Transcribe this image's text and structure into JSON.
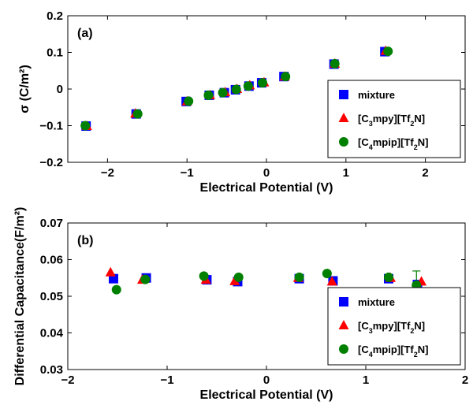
{
  "chart_data": [
    {
      "type": "scatter",
      "panel_label": "(a)",
      "xlabel": "Electrical Potential (V)",
      "ylabel": "σ (C/m²)",
      "xlim": [
        -2.5,
        2.5
      ],
      "ylim": [
        -0.2,
        0.2
      ],
      "xticks": [
        "−2",
        "−1",
        "0",
        "1",
        "2"
      ],
      "xtick_values": [
        -2,
        -1,
        0,
        1,
        2
      ],
      "yticks": [
        "−0.2",
        "−0.1",
        "0",
        "0.1",
        "0.2"
      ],
      "ytick_values": [
        -0.2,
        -0.1,
        0,
        0.1,
        0.2
      ],
      "grid": false,
      "legend_position": "lower-right",
      "series": [
        {
          "name": "mixture",
          "marker": "square",
          "color": "#0000ff",
          "points": [
            [
              -2.27,
              -0.101
            ],
            [
              -1.64,
              -0.068
            ],
            [
              -1.01,
              -0.034
            ],
            [
              -0.72,
              -0.017
            ],
            [
              -0.53,
              -0.01
            ],
            [
              -0.39,
              -0.002
            ],
            [
              -0.22,
              0.008
            ],
            [
              -0.06,
              0.017
            ],
            [
              0.22,
              0.034
            ],
            [
              0.85,
              0.068
            ],
            [
              1.49,
              0.102
            ]
          ]
        },
        {
          "name": "[C3mpy][Tf2N]",
          "marker": "triangle",
          "color": "#ff0000",
          "points": [
            [
              -2.26,
              -0.101
            ],
            [
              -1.65,
              -0.067
            ],
            [
              -1.0,
              -0.034
            ],
            [
              -0.71,
              -0.017
            ],
            [
              -0.52,
              -0.009
            ],
            [
              -0.37,
              0.0
            ],
            [
              -0.21,
              0.01
            ],
            [
              -0.03,
              0.018
            ],
            [
              0.23,
              0.034
            ],
            [
              0.86,
              0.069
            ],
            [
              1.5,
              0.104
            ]
          ]
        },
        {
          "name": "[C4mpip][Tf2N]",
          "marker": "circle",
          "color": "#008000",
          "points": [
            [
              -2.28,
              -0.1
            ],
            [
              -1.62,
              -0.068
            ],
            [
              -0.98,
              -0.033
            ],
            [
              -0.73,
              -0.017
            ],
            [
              -0.55,
              -0.01
            ],
            [
              -0.38,
              -0.001
            ],
            [
              -0.23,
              0.008
            ],
            [
              -0.05,
              0.017
            ],
            [
              0.24,
              0.034
            ],
            [
              0.86,
              0.069
            ],
            [
              1.53,
              0.103
            ]
          ]
        }
      ],
      "legend": {
        "entries": [
          {
            "label": "mixture",
            "sub": ""
          },
          {
            "label": "[C",
            "sub": "3",
            "label2": "mpy][Tf",
            "sub2": "2",
            "label3": "N]"
          },
          {
            "label": "[C",
            "sub": "4",
            "label2": "mpip][Tf",
            "sub2": "2",
            "label3": "N]"
          }
        ]
      }
    },
    {
      "type": "scatter",
      "panel_label": "(b)",
      "xlabel": "Electrical Potential (V)",
      "ylabel": "Differential Capacitance(F/m²)",
      "xlim": [
        -2,
        2
      ],
      "ylim": [
        0.03,
        0.07
      ],
      "xticks": [
        "−2",
        "−1",
        "0",
        "1",
        "2"
      ],
      "xtick_values": [
        -2,
        -1,
        0,
        1,
        2
      ],
      "yticks": [
        "0.03",
        "0.04",
        "0.05",
        "0.06",
        "0.07"
      ],
      "ytick_values": [
        0.03,
        0.04,
        0.05,
        0.06,
        0.07
      ],
      "grid": false,
      "legend_position": "lower-right",
      "series": [
        {
          "name": "mixture",
          "marker": "square",
          "color": "#0000ff",
          "points": [
            [
              -1.54,
              0.0548
            ],
            [
              -1.21,
              0.055
            ],
            [
              -0.6,
              0.0545
            ],
            [
              -0.29,
              0.054
            ],
            [
              0.33,
              0.0548
            ],
            [
              0.67,
              0.0542
            ],
            [
              1.23,
              0.0548
            ],
            [
              1.52,
              0.0532
            ]
          ]
        },
        {
          "name": "[C3mpy][Tf2N]",
          "marker": "triangle",
          "color": "#ff0000",
          "points": [
            [
              -1.57,
              0.0565
            ],
            [
              -1.25,
              0.0545
            ],
            [
              -0.61,
              0.0545
            ],
            [
              -0.32,
              0.0541
            ],
            [
              0.32,
              0.055
            ],
            [
              0.66,
              0.054
            ],
            [
              1.25,
              0.055
            ],
            [
              1.56,
              0.054
            ]
          ]
        },
        {
          "name": "[C4mpip][Tf2N]",
          "marker": "circle",
          "color": "#008000",
          "points": [
            [
              -1.51,
              0.0518
            ],
            [
              -1.22,
              0.0546
            ],
            [
              -0.63,
              0.0555
            ],
            [
              -0.28,
              0.0552
            ],
            [
              0.33,
              0.0552
            ],
            [
              0.61,
              0.0562
            ],
            [
              1.23,
              0.0552
            ],
            [
              1.51,
              0.053
            ]
          ]
        }
      ],
      "error_bars": [
        {
          "series": "[C4mpip][Tf2N]",
          "x": 1.51,
          "y": 0.053,
          "low": 0.0494,
          "high": 0.0569
        }
      ],
      "legend": {
        "entries": [
          {
            "label": "mixture",
            "sub": ""
          },
          {
            "label": "[C",
            "sub": "3",
            "label2": "mpy][Tf",
            "sub2": "2",
            "label3": "N]"
          },
          {
            "label": "[C",
            "sub": "4",
            "label2": "mpip][Tf",
            "sub2": "2",
            "label3": "N]"
          }
        ]
      }
    }
  ]
}
